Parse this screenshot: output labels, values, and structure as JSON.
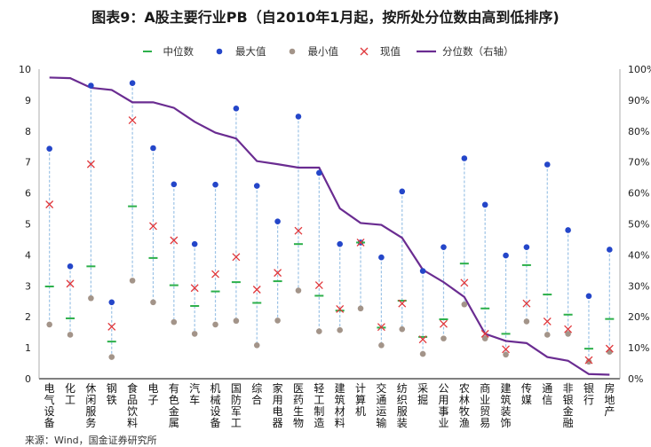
{
  "title": "图表9：A股主要行业PB（自2010年1月起，按所处分位数由高到低排序)",
  "source": "来源：Wind，国金证券研究所",
  "legend": [
    {
      "key": "median",
      "label": "中位数",
      "color": "#2db04b"
    },
    {
      "key": "max",
      "label": "最大值",
      "color": "#2446c9"
    },
    {
      "key": "min",
      "label": "最小值",
      "color": "#a39489"
    },
    {
      "key": "current",
      "label": "现值",
      "color": "#e0383c"
    },
    {
      "key": "percentile",
      "label": "分位数（右轴）",
      "color": "#6a2c91"
    }
  ],
  "chart_data": {
    "type": "scatter",
    "ylim": [
      0,
      10
    ],
    "y2lim": [
      0,
      1
    ],
    "y_ticks": [
      "0",
      "1",
      "2",
      "3",
      "4",
      "5",
      "6",
      "7",
      "8",
      "9",
      "10"
    ],
    "y2_ticks": [
      "0%",
      "10%",
      "20%",
      "30%",
      "40%",
      "50%",
      "60%",
      "70%",
      "80%",
      "90%",
      "100%"
    ],
    "categories": [
      "电气设备",
      "化工",
      "休闲服务",
      "钢铁",
      "食品饮料",
      "电子",
      "有色金属",
      "汽车",
      "机械设备",
      "国防军工",
      "综合",
      "家用电器",
      "医药生物",
      "轻工制造",
      "建筑材料",
      "计算机",
      "交通运输",
      "纺织服装",
      "采掘",
      "公用事业",
      "农林牧渔",
      "商业贸易",
      "建筑装饰",
      "传媒",
      "通信",
      "非银金融",
      "银行",
      "房地产"
    ],
    "series": [
      {
        "name": "中位数",
        "key": "median",
        "values": [
          2.98,
          1.95,
          3.63,
          1.2,
          5.57,
          3.9,
          3.02,
          2.35,
          2.82,
          3.12,
          2.45,
          3.15,
          4.35,
          2.68,
          2.2,
          4.4,
          1.65,
          2.52,
          1.35,
          1.92,
          3.72,
          2.27,
          1.45,
          3.67,
          2.72,
          2.07,
          0.97,
          1.93
        ]
      },
      {
        "name": "最大值",
        "key": "max",
        "values": [
          7.43,
          3.63,
          9.47,
          2.47,
          9.55,
          7.45,
          6.28,
          4.35,
          6.27,
          8.73,
          6.23,
          5.08,
          8.47,
          6.65,
          4.35,
          4.4,
          3.92,
          6.05,
          3.48,
          4.25,
          7.12,
          5.62,
          3.98,
          4.25,
          6.92,
          4.8,
          2.67,
          4.17
        ]
      },
      {
        "name": "最小值",
        "key": "min",
        "values": [
          1.75,
          1.42,
          2.6,
          0.7,
          3.17,
          2.47,
          1.83,
          1.45,
          1.75,
          1.87,
          1.08,
          1.88,
          2.85,
          1.53,
          1.57,
          2.27,
          1.08,
          1.6,
          0.8,
          1.3,
          2.4,
          1.3,
          0.78,
          1.85,
          1.42,
          1.45,
          0.55,
          0.87
        ]
      },
      {
        "name": "现值",
        "key": "current",
        "values": [
          5.63,
          3.07,
          6.93,
          1.68,
          8.35,
          4.93,
          4.47,
          2.93,
          3.38,
          3.93,
          2.88,
          3.42,
          4.78,
          3.02,
          2.25,
          4.4,
          1.67,
          2.43,
          1.27,
          1.77,
          3.1,
          1.45,
          0.95,
          2.43,
          1.85,
          1.6,
          0.6,
          0.97
        ]
      },
      {
        "name": "分位数（右轴）",
        "key": "percentile",
        "axis": "right",
        "values": [
          0.973,
          0.971,
          0.94,
          0.933,
          0.893,
          0.893,
          0.875,
          0.83,
          0.795,
          0.776,
          0.703,
          0.693,
          0.682,
          0.682,
          0.55,
          0.503,
          0.497,
          0.455,
          0.352,
          0.312,
          0.264,
          0.145,
          0.122,
          0.115,
          0.07,
          0.058,
          0.015,
          0.013
        ]
      }
    ]
  }
}
